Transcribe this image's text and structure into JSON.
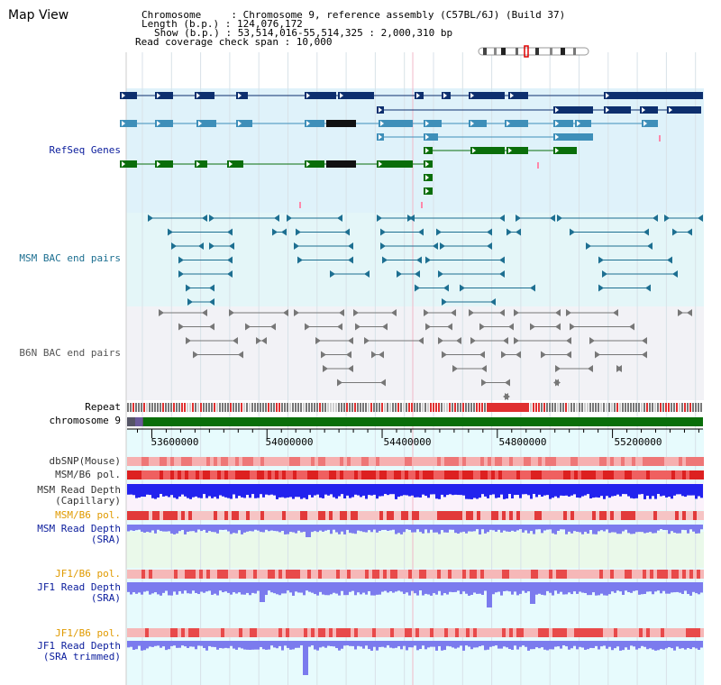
{
  "header": {
    "title": "Map View",
    "chromosome": "Chromosome     : Chromosome 9, reference assembly (C57BL/6J) (Build 37)",
    "length": "Length (b.p.) : 124,076,172",
    "show": "Show (b.p.) : 53,514,016-55,514,325 : 2,000,310 bp",
    "span": "Read coverage check span : 10,000"
  },
  "tracks": {
    "refseq": "RefSeq Genes",
    "msm_bac": "MSM BAC end pairs",
    "b6n_bac": "B6N BAC end pairs",
    "repeat": "Repeat",
    "chromosome": "chromosome 9",
    "dbsnp": "dbSNP(Mouse)",
    "msm_b6_pol": "MSM/B6 pol.",
    "msm_depth_cap_1": "MSM Read Depth",
    "msm_depth_cap_2": "(Capillary)",
    "msm_b6_pol_2": "MSM/B6 pol.",
    "msm_depth_sra_1": "MSM Read Depth",
    "msm_depth_sra_2": "(SRA)",
    "jf1_b6_pol": "JF1/B6 pol.",
    "jf1_depth_sra_1": "JF1 Read Depth",
    "jf1_depth_sra_2": "(SRA)",
    "jf1_b6_pol_2": "JF1/B6 pol.",
    "jf1_depth_trim_1": "JF1 Read Depth",
    "jf1_depth_trim_2": "(SRA trimmed)"
  },
  "axis": {
    "ticks": [
      "53600000",
      "54000000",
      "54400000",
      "54800000",
      "55200000"
    ],
    "tick_values": [
      53600000,
      54000000,
      54400000,
      54800000,
      55200000
    ],
    "range": [
      53514016,
      55514325
    ]
  },
  "colors": {
    "gene_navy": "#0d2f6e",
    "gene_teal": "#3e8fb9",
    "gene_green": "#0a6e0a",
    "msm_bac": "#1d6f91",
    "b6n_bac": "#777777",
    "chrom_green": "#0a6e0a",
    "pol_red": "#e83a3a",
    "depth_blue": "#2222ee",
    "depth_violet": "#7b7bee",
    "label_navy": "#0a1c9c",
    "label_orange": "#e09a00"
  }
}
